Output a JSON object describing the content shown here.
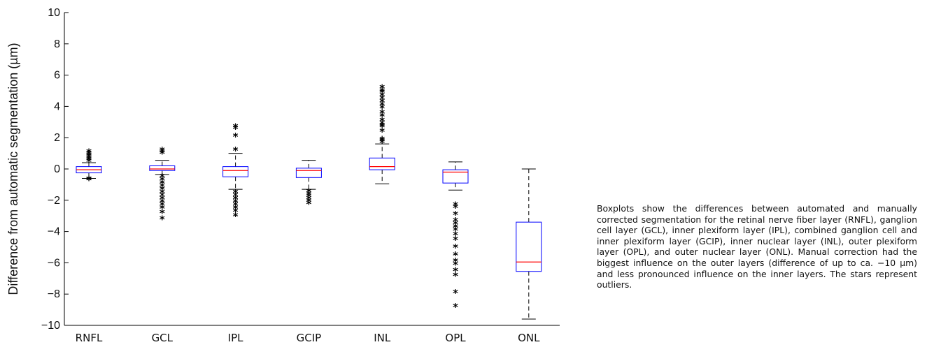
{
  "chart_data": {
    "type": "box",
    "ylabel": "Difference from automatic segmentation (µm)",
    "xlabel": "",
    "ylim": [
      -10,
      10
    ],
    "yticks": [
      10,
      8,
      6,
      4,
      2,
      0,
      -2,
      -4,
      -6,
      -8,
      -10
    ],
    "categories": [
      "RNFL",
      "GCL",
      "IPL",
      "GCIP",
      "INL",
      "OPL",
      "ONL"
    ],
    "boxes": [
      {
        "name": "RNFL",
        "whisker_low": -0.6,
        "q1": -0.25,
        "median": -0.05,
        "q3": 0.15,
        "whisker_high": 0.4,
        "outliers": [
          1.1,
          1.0,
          0.9,
          0.8,
          0.7,
          0.6,
          0.5,
          -0.65,
          -0.7
        ]
      },
      {
        "name": "GCL",
        "whisker_low": -0.35,
        "q1": -0.1,
        "median": 0.0,
        "q3": 0.2,
        "whisker_high": 0.55,
        "outliers": [
          1.2,
          1.1,
          1.0,
          -0.5,
          -0.7,
          -0.9,
          -1.1,
          -1.3,
          -1.5,
          -1.7,
          -1.9,
          -2.1,
          -2.3,
          -2.5,
          -2.8,
          -3.2
        ]
      },
      {
        "name": "IPL",
        "whisker_low": -1.3,
        "q1": -0.5,
        "median": -0.1,
        "q3": 0.15,
        "whisker_high": 1.0,
        "outliers": [
          2.7,
          2.6,
          2.1,
          1.2,
          -1.5,
          -1.7,
          -1.9,
          -2.1,
          -2.3,
          -2.5,
          -2.7,
          -3.0
        ]
      },
      {
        "name": "GCIP",
        "whisker_low": -1.3,
        "q1": -0.55,
        "median": -0.1,
        "q3": 0.05,
        "whisker_high": 0.55,
        "outliers": [
          -1.45,
          -1.6,
          -1.75,
          -1.9,
          -2.05,
          -2.2
        ]
      },
      {
        "name": "INL",
        "whisker_low": -0.95,
        "q1": -0.05,
        "median": 0.15,
        "q3": 0.7,
        "whisker_high": 1.6,
        "outliers": [
          5.2,
          5.0,
          4.9,
          4.7,
          4.5,
          4.3,
          4.1,
          3.9,
          3.6,
          3.4,
          3.1,
          2.9,
          2.8,
          2.7,
          2.4,
          1.9,
          1.8,
          1.7
        ]
      },
      {
        "name": "OPL",
        "whisker_low": -1.35,
        "q1": -0.9,
        "median": -0.2,
        "q3": -0.05,
        "whisker_high": 0.45,
        "outliers": [
          -2.3,
          -2.45,
          -2.9,
          -3.3,
          -3.5,
          -3.7,
          -3.9,
          -4.2,
          -4.5,
          -5.0,
          -5.5,
          -5.9,
          -6.1,
          -6.5,
          -6.8,
          -7.9,
          -8.8
        ]
      },
      {
        "name": "ONL",
        "whisker_low": -9.6,
        "q1": -6.55,
        "median": -5.95,
        "q3": -3.4,
        "whisker_high": 0.0,
        "outliers": []
      }
    ],
    "colors": {
      "box": "#0000ff",
      "median": "#ff0000",
      "whisker": "#000000",
      "outlier": "#000000"
    }
  },
  "caption": "Boxplots show the differences between automated and manually corrected segmentation for the retinal nerve fiber layer (RNFL), ganglion cell layer (GCL), inner plexi­form layer (IPL), combined ganglion cell and inner plexiform layer (GCIP), inner nuclear layer (INL), outer plexiform layer (OPL), and outer nuclear layer (ONL). Manual correction had the biggest influence on the outer layers (difference of up to ca. −10 µm) and less pronounced influence on the inner layers. The stars represent outliers."
}
